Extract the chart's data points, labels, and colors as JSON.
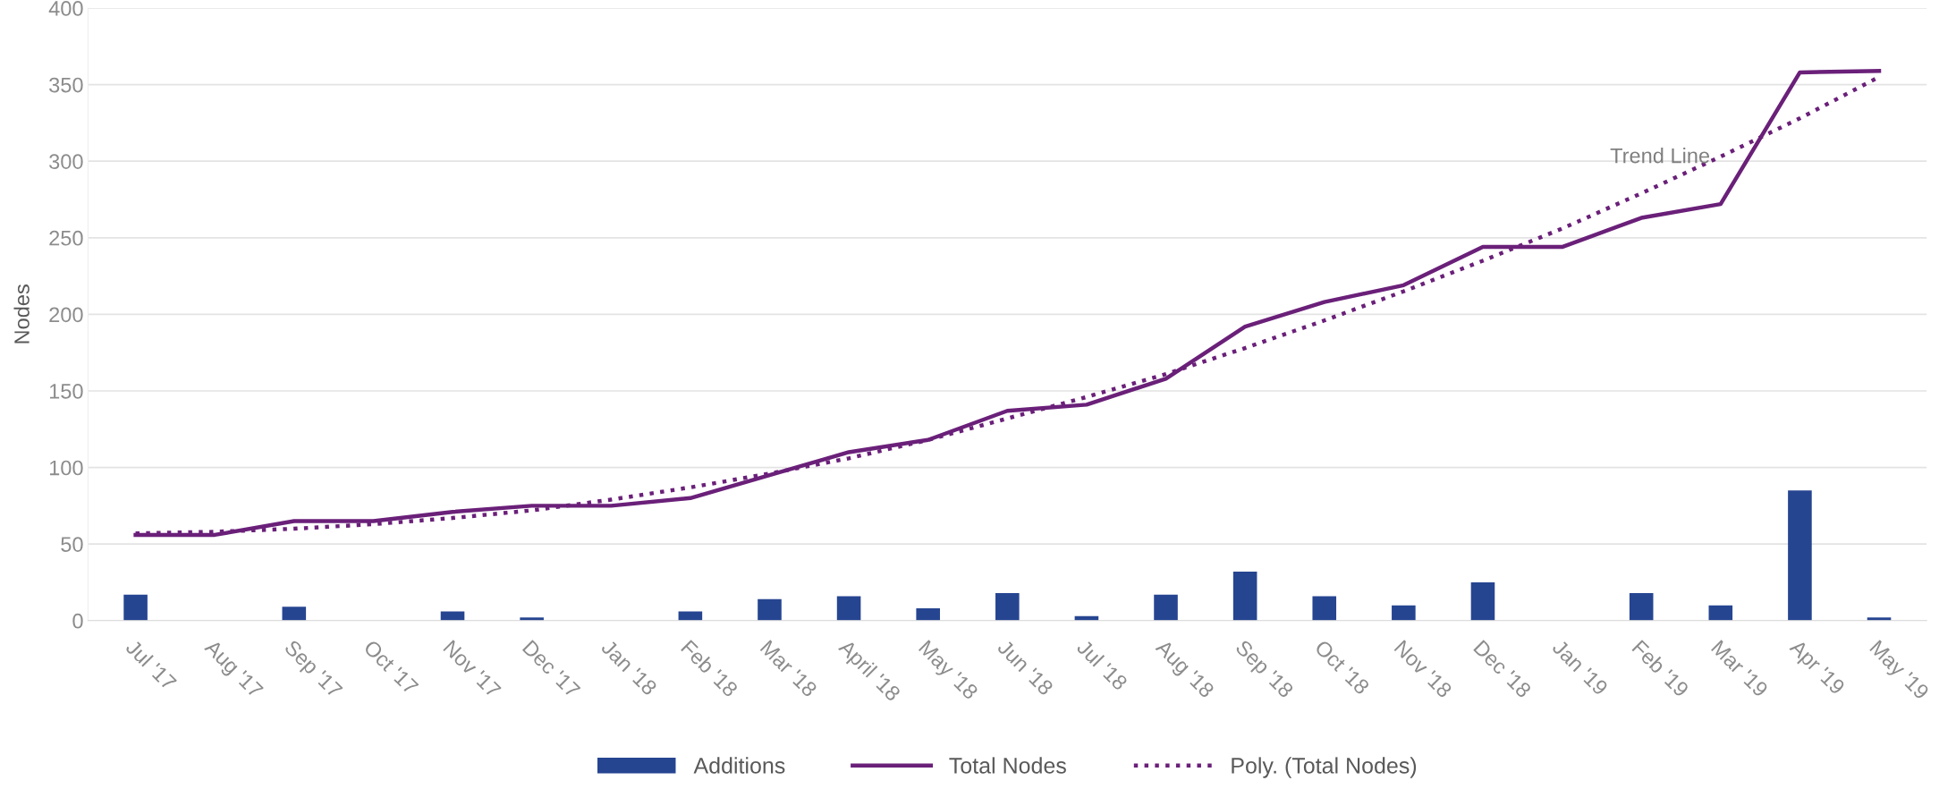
{
  "chart_data": {
    "type": "bar",
    "ylabel": "Nodes",
    "categories": [
      "Jul '17",
      "Aug '17",
      "Sep '17",
      "Oct '17",
      "Nov '17",
      "Dec '17",
      "Jan '18",
      "Feb '18",
      "Mar '18",
      "April '18",
      "May '18",
      "Jun '18",
      "Jul '18",
      "Aug '18",
      "Sep '18",
      "Oct '18",
      "Nov '18",
      "Dec '18",
      "Jan '19",
      "Feb '19",
      "Mar '19",
      "Apr '19",
      "May '19"
    ],
    "series": [
      {
        "name": "Additions",
        "color": "#264591",
        "values": [
          17,
          0,
          9,
          0,
          6,
          2,
          0,
          6,
          14,
          16,
          8,
          18,
          3,
          17,
          32,
          16,
          10,
          25,
          0,
          18,
          10,
          85,
          2
        ]
      },
      {
        "name": "Total Nodes",
        "type": "line",
        "color": "#6a2079",
        "line_style": "solid",
        "values": [
          56,
          56,
          65,
          65,
          71,
          75,
          75,
          80,
          95,
          110,
          118,
          137,
          141,
          158,
          192,
          208,
          219,
          244,
          244,
          263,
          272,
          358,
          359
        ]
      },
      {
        "name": "Poly. (Total Nodes)",
        "type": "line",
        "color": "#6a2079",
        "line_style": "dotted",
        "values": [
          57,
          58,
          60,
          63,
          67,
          72,
          79,
          87,
          96,
          106,
          118,
          132,
          146,
          161,
          178,
          196,
          215,
          235,
          256,
          279,
          303,
          328,
          355
        ]
      }
    ],
    "annotations": [
      "Trend Line"
    ],
    "ylim": [
      0,
      400
    ],
    "yticks": [
      0,
      50,
      100,
      150,
      200,
      250,
      300,
      350,
      400
    ],
    "grid": "y",
    "legend": "bottom"
  }
}
